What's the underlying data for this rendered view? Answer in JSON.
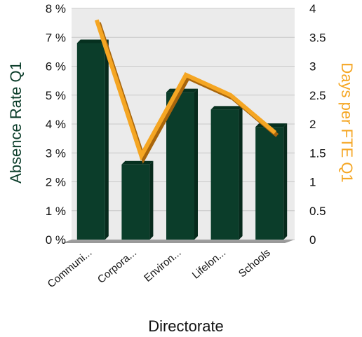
{
  "chart_data": {
    "type": "bar",
    "categories": [
      "Communi...",
      "Corpora...",
      "Environ...",
      "Lifelon...",
      "Schools"
    ],
    "series": [
      {
        "name": "Absence Rate Q1",
        "kind": "bar",
        "axis": "left",
        "values": [
          6.8,
          2.6,
          5.1,
          4.5,
          3.9
        ]
      },
      {
        "name": "Days per FTE Q1",
        "kind": "line",
        "axis": "right",
        "values": [
          3.8,
          1.45,
          2.85,
          2.5,
          1.85
        ]
      }
    ],
    "xlabel": "Directorate",
    "ylabel": "Absence Rate Q1",
    "y2label": "Days per FTE Q1",
    "ylim": [
      0,
      8
    ],
    "y2lim": [
      0,
      4
    ],
    "yticks": [
      "0 %",
      "1 %",
      "2 %",
      "3 %",
      "4 %",
      "5 %",
      "6 %",
      "7 %",
      "8 %"
    ],
    "y2ticks": [
      "0",
      "0.5",
      "1",
      "1.5",
      "2",
      "2.5",
      "3",
      "3.5",
      "4"
    ],
    "grid": true,
    "three_d": true,
    "colors": {
      "bar": "#0b3d2a",
      "line": "#f5a623",
      "left_axis_title": "#0b3d2a",
      "right_axis_title": "#f5a623"
    }
  }
}
